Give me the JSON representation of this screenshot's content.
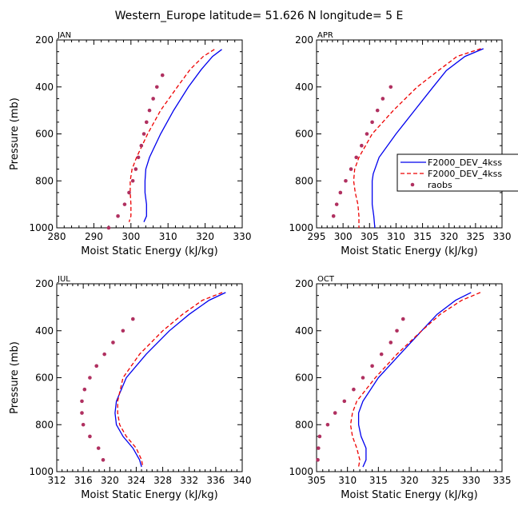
{
  "title": "Western_Europe  latitude= 51.626 N longitude= 5 E",
  "legend": {
    "entries": [
      {
        "name": "F2000_DEV_4kss",
        "style": "solid",
        "color": "#0000ee"
      },
      {
        "name": "F2000_DEV_4kss",
        "style": "dashed",
        "color": "#ee0000"
      },
      {
        "name": "raobs",
        "style": "dots",
        "color": "#b03060"
      }
    ]
  },
  "chart_data": [
    {
      "type": "line",
      "panel": "JAN",
      "xlabel": "Moist Static Energy (kJ/kg)",
      "ylabel": "Pressure (mb)",
      "xlim": [
        280,
        330
      ],
      "ylim": [
        1000,
        200
      ],
      "xticks": [
        "280",
        "290",
        "300",
        "310",
        "320",
        "330"
      ],
      "yticks": [
        "200",
        "400",
        "600",
        "800",
        "1000"
      ],
      "series": [
        {
          "name": "F2000_DEV_4kss",
          "style": "solid",
          "color": "#0000ee",
          "p": [
            240,
            270,
            325,
            400,
            500,
            600,
            700,
            750,
            800,
            850,
            900,
            950,
            975
          ],
          "x": [
            324.5,
            322.0,
            319.0,
            315.5,
            311.5,
            308.0,
            305.0,
            304.0,
            303.8,
            303.8,
            304.2,
            304.2,
            303.5
          ]
        },
        {
          "name": "F2000_DEV_4kss",
          "style": "dashed",
          "color": "#ee0000",
          "p": [
            240,
            270,
            325,
            400,
            500,
            600,
            700,
            750,
            800,
            850,
            900,
            950,
            975
          ],
          "x": [
            322.5,
            319.5,
            316.0,
            312.5,
            308.0,
            304.5,
            301.5,
            300.3,
            299.8,
            299.8,
            300.0,
            300.0,
            299.5
          ]
        }
      ],
      "raobs": {
        "p": [
          350,
          400,
          450,
          500,
          550,
          600,
          650,
          700,
          750,
          800,
          850,
          900,
          950,
          1000
        ],
        "x": [
          308.5,
          307.0,
          306.0,
          305.0,
          304.2,
          303.5,
          302.8,
          302.0,
          301.3,
          300.5,
          299.5,
          298.3,
          296.5,
          294.0
        ]
      }
    },
    {
      "type": "line",
      "panel": "APR",
      "xlabel": "Moist Static Energy (kJ/kg)",
      "ylabel": "",
      "xlim": [
        295,
        330
      ],
      "ylim": [
        1000,
        200
      ],
      "xticks": [
        "295",
        "300",
        "305",
        "310",
        "315",
        "320",
        "325",
        "330"
      ],
      "yticks": [
        "200",
        "400",
        "600",
        "800",
        "1000"
      ],
      "series": [
        {
          "name": "F2000_DEV_4kss",
          "style": "solid",
          "color": "#0000ee",
          "p": [
            237,
            270,
            330,
            400,
            500,
            600,
            700,
            770,
            800,
            850,
            900,
            950,
            1000
          ],
          "x": [
            326.5,
            323.0,
            319.5,
            317.0,
            313.5,
            310.0,
            306.8,
            305.7,
            305.5,
            305.5,
            305.5,
            305.8,
            306.0
          ]
        },
        {
          "name": "F2000_DEV_4kss",
          "style": "dashed",
          "color": "#ee0000",
          "p": [
            237,
            270,
            330,
            400,
            500,
            600,
            700,
            750,
            800,
            850,
            900,
            950,
            1000
          ],
          "x": [
            326.0,
            321.5,
            318.0,
            314.0,
            309.5,
            305.5,
            303.0,
            302.2,
            302.0,
            302.3,
            302.8,
            303.0,
            303.0
          ]
        }
      ],
      "raobs": {
        "p": [
          400,
          450,
          500,
          550,
          600,
          650,
          700,
          750,
          800,
          850,
          900,
          950
        ],
        "x": [
          309.0,
          307.5,
          306.5,
          305.5,
          304.5,
          303.5,
          302.5,
          301.5,
          300.5,
          299.5,
          298.8,
          298.2
        ]
      }
    },
    {
      "type": "line",
      "panel": "JUL",
      "xlabel": "Moist Static Energy (kJ/kg)",
      "ylabel": "Pressure (mb)",
      "xlim": [
        312,
        340
      ],
      "ylim": [
        1000,
        200
      ],
      "xticks": [
        "312",
        "316",
        "320",
        "324",
        "328",
        "332",
        "336",
        "340"
      ],
      "yticks": [
        "200",
        "400",
        "600",
        "800",
        "1000"
      ],
      "series": [
        {
          "name": "F2000_DEV_4kss",
          "style": "solid",
          "color": "#0000ee",
          "p": [
            237,
            270,
            330,
            400,
            500,
            600,
            700,
            750,
            800,
            850,
            900,
            950,
            980
          ],
          "x": [
            337.5,
            335.0,
            332.0,
            329.0,
            325.5,
            322.5,
            321.0,
            320.8,
            321.0,
            322.0,
            323.5,
            324.5,
            324.8
          ]
        },
        {
          "name": "F2000_DEV_4kss",
          "style": "dashed",
          "color": "#ee0000",
          "p": [
            237,
            270,
            330,
            400,
            500,
            600,
            700,
            750,
            800,
            850,
            900,
            950,
            980
          ],
          "x": [
            337.0,
            334.0,
            331.0,
            328.0,
            324.5,
            322.0,
            321.2,
            321.2,
            321.5,
            322.5,
            324.0,
            324.8,
            325.0
          ]
        }
      ],
      "raobs": {
        "p": [
          350,
          400,
          450,
          500,
          550,
          600,
          650,
          700,
          750,
          800,
          850,
          900,
          950
        ],
        "x": [
          323.5,
          322.0,
          320.5,
          319.2,
          318.0,
          317.0,
          316.2,
          315.8,
          315.8,
          316.0,
          317.0,
          318.3,
          319.0
        ]
      }
    },
    {
      "type": "line",
      "panel": "OCT",
      "xlabel": "Moist Static Energy (kJ/kg)",
      "ylabel": "",
      "xlim": [
        305,
        335
      ],
      "ylim": [
        1000,
        200
      ],
      "xticks": [
        "305",
        "310",
        "315",
        "320",
        "325",
        "330",
        "335"
      ],
      "yticks": [
        "200",
        "400",
        "600",
        "800",
        "1000"
      ],
      "series": [
        {
          "name": "F2000_DEV_4kss",
          "style": "solid",
          "color": "#0000ee",
          "p": [
            237,
            270,
            330,
            400,
            500,
            600,
            700,
            750,
            800,
            850,
            900,
            950,
            980
          ],
          "x": [
            330.0,
            327.5,
            324.5,
            322.0,
            318.5,
            315.0,
            312.5,
            311.8,
            311.8,
            312.2,
            313.0,
            313.0,
            312.5
          ]
        },
        {
          "name": "F2000_DEV_4kss",
          "style": "dashed",
          "color": "#ee0000",
          "p": [
            237,
            270,
            330,
            400,
            500,
            600,
            700,
            750,
            800,
            850,
            900,
            950,
            980
          ],
          "x": [
            331.5,
            328.5,
            325.0,
            322.0,
            318.0,
            314.5,
            311.5,
            310.8,
            310.5,
            310.8,
            311.5,
            312.0,
            311.8
          ]
        }
      ],
      "raobs": {
        "p": [
          350,
          400,
          450,
          500,
          550,
          600,
          650,
          700,
          750,
          800,
          850,
          900,
          950
        ],
        "x": [
          319.0,
          318.0,
          317.0,
          315.5,
          314.0,
          312.5,
          311.0,
          309.5,
          308.0,
          306.8,
          305.5,
          305.3,
          305.2
        ]
      }
    }
  ]
}
